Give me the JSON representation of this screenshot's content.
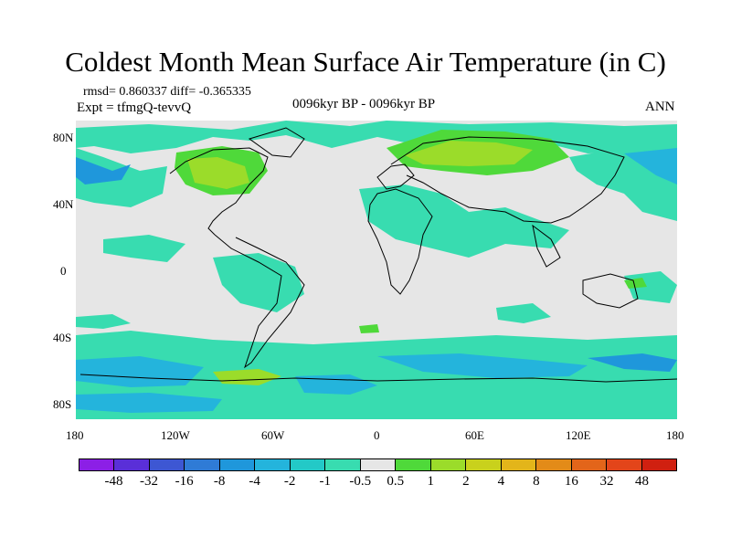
{
  "title": "Coldest Month Mean Surface Air Temperature (in C)",
  "stats": "rmsd= 0.860337 diff= -0.365335",
  "expt": "Expt = tfmgQ-tevvQ",
  "period": "0096kyr BP - 0096kyr BP",
  "season": "ANN",
  "lat_labels": [
    "80N",
    "40N",
    "0",
    "40S",
    "80S"
  ],
  "lon_labels": [
    "180",
    "120W",
    "60W",
    "0",
    "60E",
    "120E",
    "180"
  ],
  "colorbar": {
    "labels": [
      "-48",
      "-32",
      "-16",
      "-8",
      "-4",
      "-2",
      "-1",
      "-0.5",
      "0.5",
      "1",
      "2",
      "4",
      "8",
      "16",
      "32",
      "48"
    ],
    "colors": [
      "#8c1fe6",
      "#5a2fd8",
      "#3d57d3",
      "#2f7bd6",
      "#1f97db",
      "#24b4dc",
      "#23c9c7",
      "#38dcb0",
      "#e6e6e6",
      "#4fd93a",
      "#9bdc2a",
      "#c9d11c",
      "#e3b51a",
      "#e38b18",
      "#e3651a",
      "#e3451a",
      "#d02010"
    ]
  },
  "colors": {
    "neutral": "#e6e6e6",
    "cool_weak": "#38dcb0",
    "cool_mid": "#23c9c7",
    "cool_strong": "#24b4dc",
    "cool_stronger": "#1f97db",
    "warm_weak": "#4fd93a",
    "warm_mid": "#9bdc2a"
  }
}
